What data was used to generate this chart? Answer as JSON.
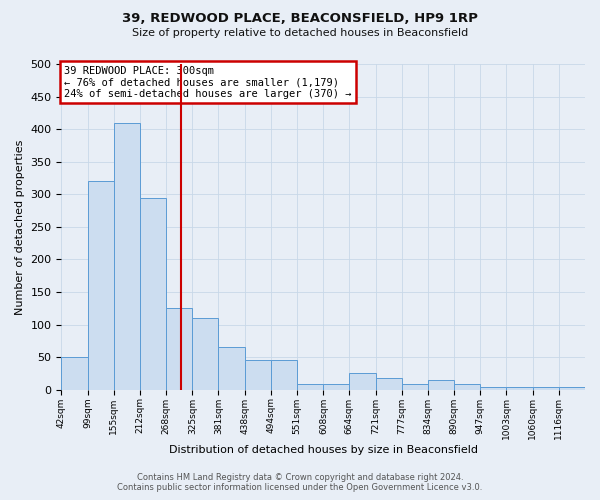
{
  "title": "39, REDWOOD PLACE, BEACONSFIELD, HP9 1RP",
  "subtitle": "Size of property relative to detached houses in Beaconsfield",
  "xlabel": "Distribution of detached houses by size in Beaconsfield",
  "ylabel": "Number of detached properties",
  "footer_line1": "Contains HM Land Registry data © Crown copyright and database right 2024.",
  "footer_line2": "Contains public sector information licensed under the Open Government Licence v3.0.",
  "annotation_line1": "39 REDWOOD PLACE: 300sqm",
  "annotation_line2": "← 76% of detached houses are smaller (1,179)",
  "annotation_line3": "24% of semi-detached houses are larger (370) →",
  "bar_edges": [
    42,
    99,
    155,
    212,
    268,
    325,
    381,
    438,
    494,
    551,
    608,
    664,
    721,
    777,
    834,
    890,
    947,
    1003,
    1060,
    1116,
    1173
  ],
  "bar_heights": [
    50,
    320,
    410,
    295,
    125,
    110,
    65,
    45,
    45,
    8,
    8,
    25,
    18,
    8,
    15,
    8,
    4,
    4,
    4,
    4
  ],
  "bar_color": "#ccddf0",
  "bar_edge_color": "#5b9bd5",
  "vline_x": 300,
  "vline_color": "#cc0000",
  "ylim": [
    0,
    500
  ],
  "yticks": [
    0,
    50,
    100,
    150,
    200,
    250,
    300,
    350,
    400,
    450,
    500
  ],
  "annotation_box_color": "#cc0000",
  "annotation_box_facecolor": "white",
  "grid_color": "#c8d8e8",
  "background_color": "#e8eef6"
}
